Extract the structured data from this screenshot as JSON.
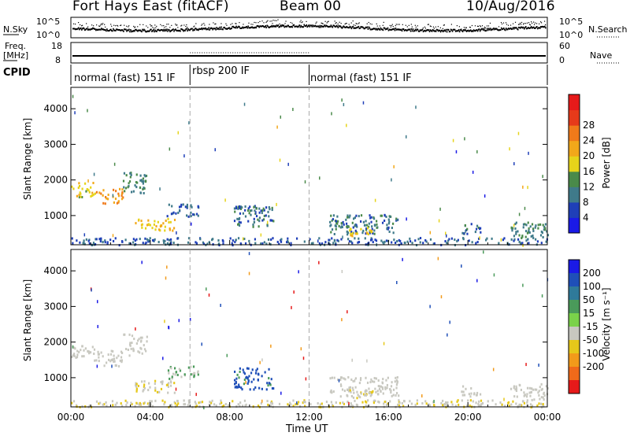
{
  "header": {
    "station": "Fort Hays East (fitACF)",
    "beam": "Beam 00",
    "date": "10/Aug/2016"
  },
  "top_panels": {
    "nsky_label": "N.Sky",
    "nsearch_label": "N.Search",
    "noise_ticks_left": [
      "10^5",
      "10^0"
    ],
    "noise_ticks_right": [
      "10^5",
      "10^0"
    ],
    "freq_label_top": "Freq.",
    "freq_label_bottom": "[MHz]",
    "freq_ticks": [
      "18",
      "8"
    ],
    "nave_label": "Nave",
    "nave_ticks": [
      "60",
      "0"
    ],
    "cpid_label": "CPID",
    "cpid_segments": [
      {
        "label": "normal (fast) 151 IF",
        "start_hour": 0,
        "end_hour": 6
      },
      {
        "label": "rbsp 200 IF",
        "start_hour": 6,
        "end_hour": 12
      },
      {
        "label": "normal (fast) 151 IF",
        "start_hour": 12,
        "end_hour": 24
      }
    ]
  },
  "power_panel": {
    "ylabel": "Slant Range [km]",
    "yticks": [
      "1000",
      "2000",
      "3000",
      "4000"
    ],
    "colorbar_label": "Power [dB]",
    "colorbar_ticks": [
      "4",
      "8",
      "12",
      "16",
      "20",
      "24",
      "28"
    ],
    "colors": [
      "#1a1ae6",
      "#1f3fb8",
      "#3f7a8a",
      "#4a8a4a",
      "#e6d41a",
      "#f2a81a",
      "#f07a1a",
      "#e63a1a",
      "#e61a1a"
    ]
  },
  "velocity_panel": {
    "ylabel": "Slant Range [km]",
    "yticks": [
      "1000",
      "2000",
      "3000",
      "4000"
    ],
    "colorbar_label": "Velocity [m s⁻¹]",
    "colorbar_ticks": [
      "200",
      "100",
      "50",
      "15",
      "-15",
      "-50",
      "-100",
      "-200"
    ],
    "colors": [
      "#1a1ae6",
      "#1f4fb8",
      "#2f7a9a",
      "#4a9a5a",
      "#7ad24a",
      "#c8c8c0",
      "#e6c81a",
      "#f29a1a",
      "#f06a1a",
      "#e61a1a"
    ]
  },
  "xaxis": {
    "ticks": [
      "00:00",
      "04:00",
      "08:00",
      "12:00",
      "16:00",
      "20:00",
      "00:00"
    ],
    "label": "Time UT"
  },
  "chart_data": {
    "type": "heatmap",
    "title": "Fort Hays East (fitACF)  Beam 00  10/Aug/2016",
    "xlabel": "Time UT",
    "ylabel": "Slant Range [km]",
    "xlim_hours": [
      0,
      24
    ],
    "ylim_km": [
      180,
      4600
    ],
    "x_tick_labels": [
      "00:00",
      "04:00",
      "08:00",
      "12:00",
      "16:00",
      "20:00",
      "00:00"
    ],
    "y_ticks_km": [
      1000,
      2000,
      3000,
      4000
    ],
    "grid": false,
    "mode_change_hours": [
      6,
      12
    ],
    "regions": [
      {
        "t0": 0.0,
        "t1": 1.2,
        "r0": 1500,
        "r1": 1950,
        "power_db": 16,
        "velocity": 0
      },
      {
        "t0": 1.2,
        "t1": 2.6,
        "r0": 1350,
        "r1": 1800,
        "power_db": 22,
        "velocity": 0
      },
      {
        "t0": 2.6,
        "t1": 3.8,
        "r0": 1650,
        "r1": 2250,
        "power_db": 10,
        "velocity": 0
      },
      {
        "t0": 3.2,
        "t1": 5.2,
        "r0": 600,
        "r1": 950,
        "power_db": 18,
        "velocity": -10
      },
      {
        "t0": 4.8,
        "t1": 6.4,
        "r0": 1000,
        "r1": 1350,
        "power_db": 6,
        "velocity": 20
      },
      {
        "t0": 8.2,
        "t1": 10.2,
        "r0": 700,
        "r1": 1300,
        "power_db": 8,
        "velocity": 60
      },
      {
        "t0": 13.0,
        "t1": 16.5,
        "r0": 500,
        "r1": 1050,
        "power_db": 8,
        "velocity": 0
      },
      {
        "t0": 14.0,
        "t1": 15.2,
        "r0": 450,
        "r1": 700,
        "power_db": 18,
        "velocity": -20
      },
      {
        "t0": 19.6,
        "t1": 20.6,
        "r0": 500,
        "r1": 800,
        "power_db": 8,
        "velocity": 0
      },
      {
        "t0": 22.1,
        "t1": 24.0,
        "r0": 400,
        "r1": 850,
        "power_db": 10,
        "velocity": 0
      },
      {
        "t0": 0.0,
        "t1": 24.0,
        "r0": 200,
        "r1": 400,
        "power_db": 6,
        "velocity": -10
      }
    ]
  }
}
